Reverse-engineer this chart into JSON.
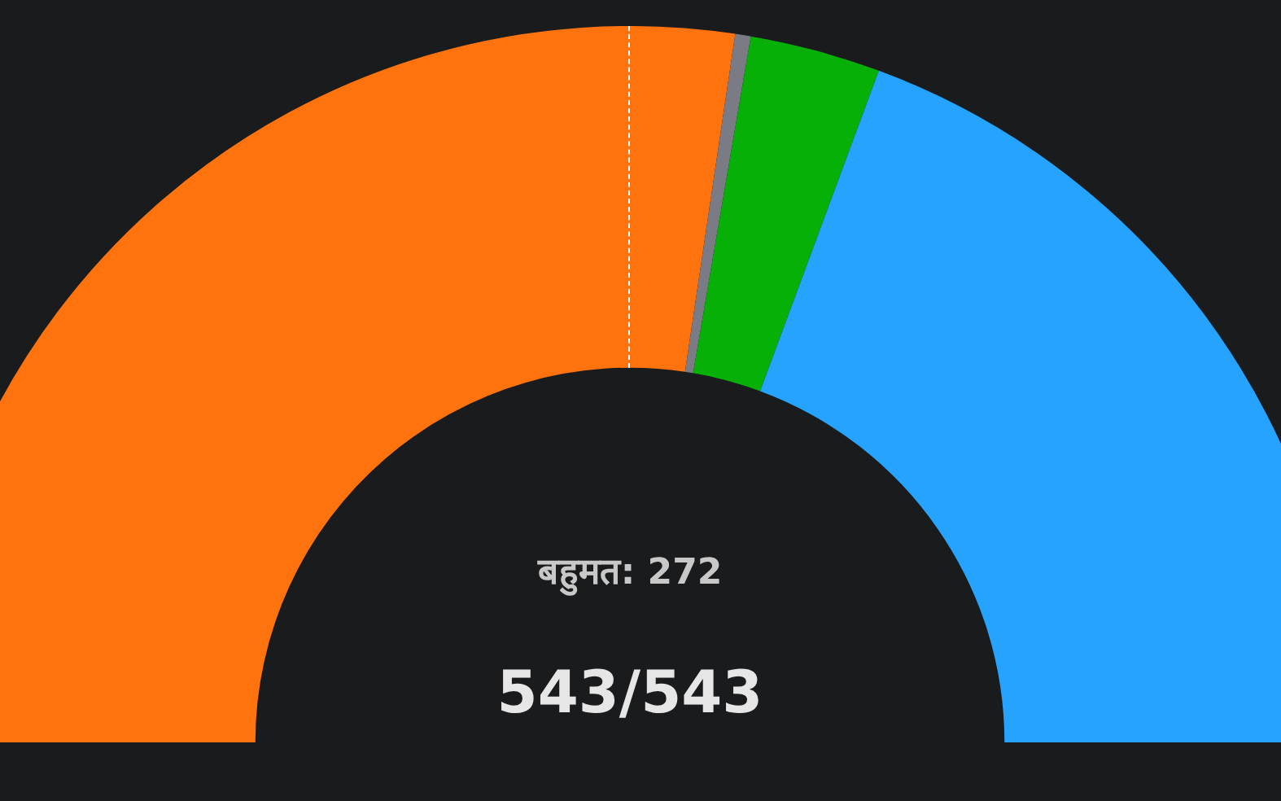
{
  "chart_data": {
    "type": "donut",
    "categories": [
      null,
      null,
      null,
      null
    ],
    "values": [
      54.7,
      0.7,
      5.9,
      38.7
    ],
    "colors": [
      "#ff730f",
      "#7b7b85",
      "#07b007",
      "#26a2ff"
    ],
    "annotations": [
      "बहुमत: 272",
      "543/543"
    ],
    "legend": false
  }
}
